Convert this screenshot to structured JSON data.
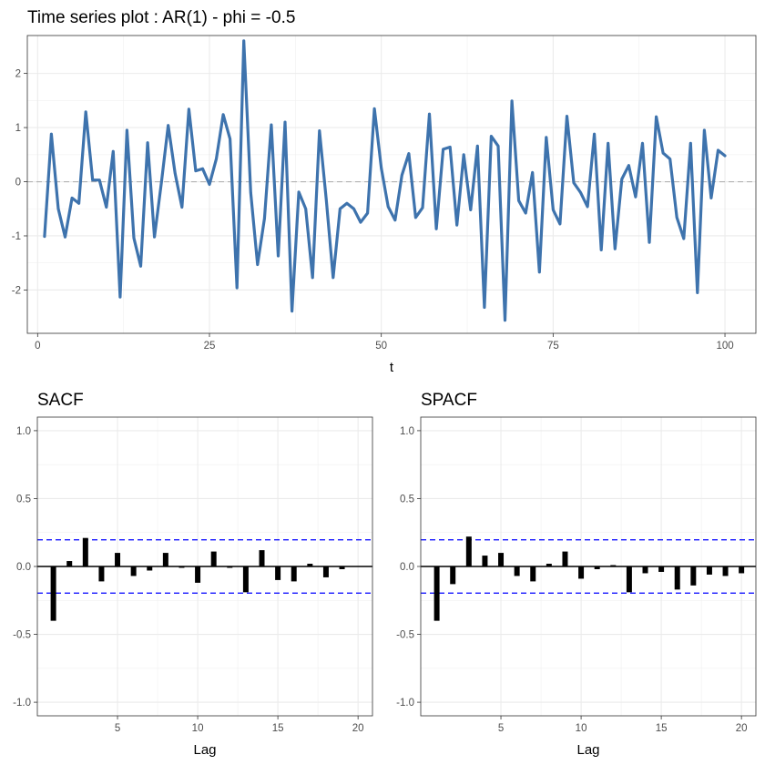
{
  "charts": {
    "ts": {
      "title": "Time series plot : AR(1) - phi = -0.5",
      "xlabel": "t",
      "ylabel": "",
      "type": "line",
      "color": "#3e73ad",
      "xlim": [
        -1.5,
        104.5
      ],
      "ylim": [
        -2.8,
        2.7
      ],
      "xticks": [
        0,
        25,
        50,
        75,
        100
      ],
      "yticks": [
        -2,
        -1,
        0,
        1,
        2
      ],
      "zero_line": 0,
      "grid": true
    },
    "sacf": {
      "title": "SACF",
      "xlabel": "Lag",
      "ylabel": "",
      "type": "bar",
      "color": "#000000",
      "xlim": [
        0,
        20.9
      ],
      "ylim": [
        -1.1,
        1.1
      ],
      "xticks": [
        5,
        10,
        15,
        20
      ],
      "yticks": [
        -1.0,
        -0.5,
        0.0,
        0.5,
        1.0
      ],
      "ytick_labels": [
        "-1.0",
        "-0.5",
        "0.0",
        "0.5",
        "1.0"
      ],
      "ci": 0.196,
      "ci_color": "#0000ff",
      "grid": true
    },
    "spacf": {
      "title": "SPACF",
      "xlabel": "Lag",
      "ylabel": "",
      "type": "bar",
      "color": "#000000",
      "xlim": [
        0,
        20.9
      ],
      "ylim": [
        -1.1,
        1.1
      ],
      "xticks": [
        5,
        10,
        15,
        20
      ],
      "yticks": [
        -1.0,
        -0.5,
        0.0,
        0.5,
        1.0
      ],
      "ytick_labels": [
        "-1.0",
        "-0.5",
        "0.0",
        "0.5",
        "1.0"
      ],
      "ci": 0.196,
      "ci_color": "#0000ff",
      "grid": true
    }
  },
  "chart_data": [
    {
      "type": "line",
      "title": "Time series plot : AR(1) - phi = -0.5",
      "xlabel": "t",
      "ylabel": "",
      "xlim": [
        -1.5,
        104.5
      ],
      "ylim": [
        -2.8,
        2.7
      ],
      "grid": true,
      "x": [
        1,
        2,
        3,
        4,
        5,
        6,
        7,
        8,
        9,
        10,
        11,
        12,
        13,
        14,
        15,
        16,
        17,
        18,
        19,
        20,
        21,
        22,
        23,
        24,
        25,
        26,
        27,
        28,
        29,
        30,
        31,
        32,
        33,
        34,
        35,
        36,
        37,
        38,
        39,
        40,
        41,
        42,
        43,
        44,
        45,
        46,
        47,
        48,
        49,
        50,
        51,
        52,
        53,
        54,
        55,
        56,
        57,
        58,
        59,
        60,
        61,
        62,
        63,
        64,
        65,
        66,
        67,
        68,
        69,
        70,
        71,
        72,
        73,
        74,
        75,
        76,
        77,
        78,
        79,
        80,
        81,
        82,
        83,
        84,
        85,
        86,
        87,
        88,
        89,
        90,
        91,
        92,
        93,
        94,
        95,
        96,
        97,
        98,
        99,
        100
      ],
      "series": [
        {
          "values": [
            -1.01,
            0.88,
            -0.5,
            -1.02,
            -0.3,
            -0.4,
            1.29,
            0.03,
            0.03,
            -0.47,
            0.56,
            -2.13,
            0.95,
            -1.04,
            -1.56,
            0.72,
            -1.02,
            -0.02,
            1.04,
            0.15,
            -0.47,
            1.34,
            0.2,
            0.24,
            -0.05,
            0.42,
            1.24,
            0.79,
            -1.96,
            2.6,
            -0.2,
            -1.53,
            -0.68,
            1.05,
            -1.37,
            1.1,
            -2.39,
            -0.19,
            -0.5,
            -1.77,
            0.94,
            -0.34,
            -1.77,
            -0.5,
            -0.4,
            -0.5,
            -0.75,
            -0.58,
            1.35,
            0.25,
            -0.46,
            -0.71,
            0.12,
            0.52,
            -0.66,
            -0.48,
            1.25,
            -0.87,
            0.6,
            0.64,
            -0.8,
            0.5,
            -0.52,
            0.66,
            -2.32,
            0.84,
            0.66,
            -2.56,
            1.49,
            -0.35,
            -0.58,
            0.17,
            -1.67,
            0.82,
            -0.52,
            -0.78,
            1.21,
            -0.02,
            -0.2,
            -0.46,
            0.88,
            -1.26,
            0.71,
            -1.24,
            0.05,
            0.3,
            -0.28,
            0.71,
            -1.12,
            1.2,
            0.53,
            0.42,
            -0.66,
            -1.05,
            0.71,
            -2.05,
            0.95,
            -0.3,
            0.58,
            0.48
          ]
        }
      ]
    },
    {
      "type": "bar",
      "title": "SACF",
      "xlabel": "Lag",
      "ylabel": "",
      "xlim": [
        0,
        20.9
      ],
      "ylim": [
        -1.1,
        1.1
      ],
      "grid": true,
      "x": [
        1,
        2,
        3,
        4,
        5,
        6,
        7,
        8,
        9,
        10,
        11,
        12,
        13,
        14,
        15,
        16,
        17,
        18,
        19,
        20
      ],
      "values": [
        -0.4,
        0.04,
        0.21,
        -0.11,
        0.1,
        -0.07,
        -0.03,
        0.1,
        -0.01,
        -0.12,
        0.11,
        -0.01,
        -0.19,
        0.12,
        -0.1,
        -0.11,
        0.02,
        -0.08,
        -0.02,
        0.0
      ],
      "confidence_bound": 0.196
    },
    {
      "type": "bar",
      "title": "SPACF",
      "xlabel": "Lag",
      "ylabel": "",
      "xlim": [
        0,
        20.9
      ],
      "ylim": [
        -1.1,
        1.1
      ],
      "grid": true,
      "x": [
        1,
        2,
        3,
        4,
        5,
        6,
        7,
        8,
        9,
        10,
        11,
        12,
        13,
        14,
        15,
        16,
        17,
        18,
        19,
        20
      ],
      "values": [
        -0.4,
        -0.13,
        0.22,
        0.08,
        0.1,
        -0.07,
        -0.11,
        0.02,
        0.11,
        -0.09,
        -0.02,
        0.01,
        -0.19,
        -0.05,
        -0.04,
        -0.17,
        -0.14,
        -0.06,
        -0.07,
        -0.05
      ],
      "confidence_bound": 0.196
    }
  ]
}
